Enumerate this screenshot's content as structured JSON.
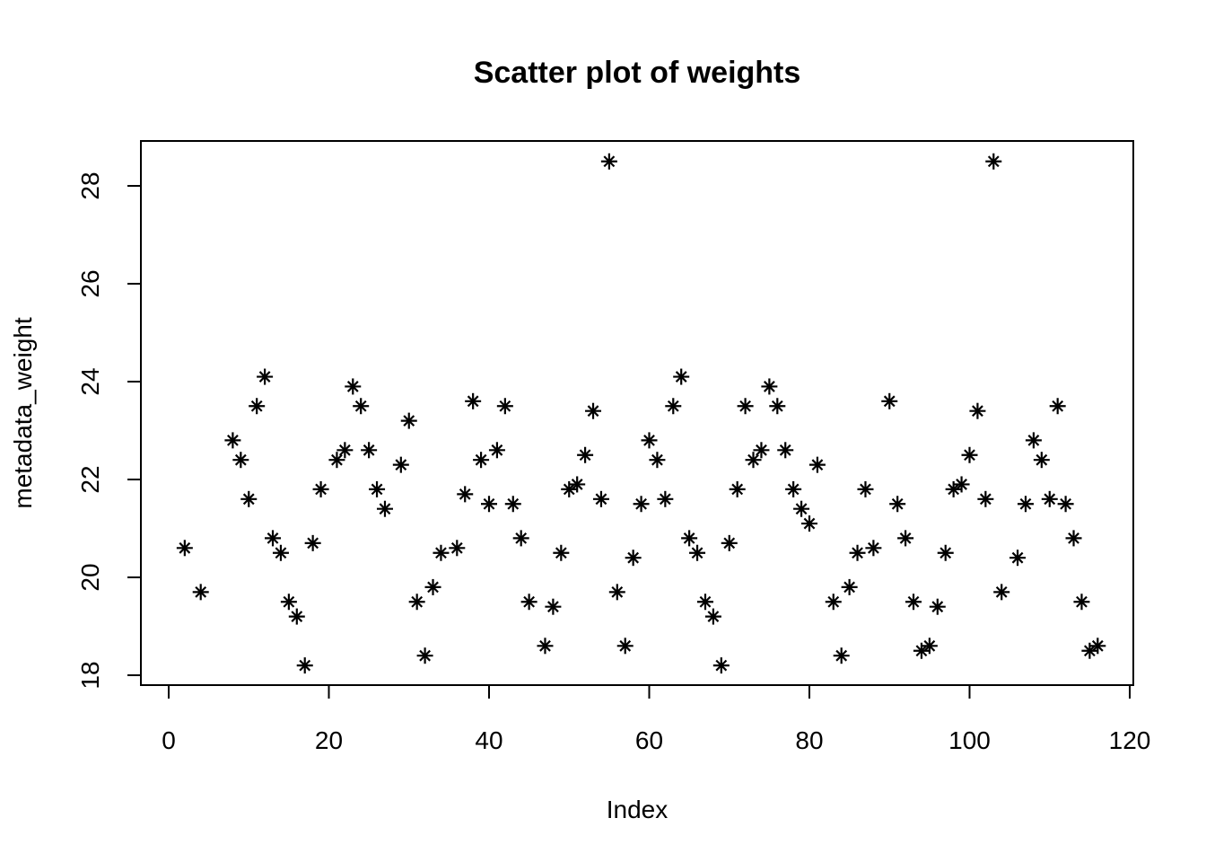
{
  "chart_data": {
    "type": "scatter",
    "title": "Scatter plot of weights",
    "xlabel": "Index",
    "ylabel": "metadata_weight",
    "xlim": [
      0,
      120
    ],
    "ylim": [
      18,
      28
    ],
    "x_ticks": [
      0,
      20,
      40,
      60,
      80,
      100,
      120
    ],
    "y_ticks": [
      18,
      20,
      22,
      24,
      26,
      28
    ],
    "marker": "asterisk",
    "grid": false,
    "legend": false,
    "points": [
      [
        2,
        20.6
      ],
      [
        4,
        19.7
      ],
      [
        8,
        22.8
      ],
      [
        9,
        22.4
      ],
      [
        10,
        21.6
      ],
      [
        11,
        23.5
      ],
      [
        12,
        24.1
      ],
      [
        13,
        20.8
      ],
      [
        14,
        20.5
      ],
      [
        15,
        19.5
      ],
      [
        16,
        19.2
      ],
      [
        17,
        18.2
      ],
      [
        18,
        20.7
      ],
      [
        19,
        21.8
      ],
      [
        21,
        22.4
      ],
      [
        22,
        22.6
      ],
      [
        23,
        23.9
      ],
      [
        24,
        23.5
      ],
      [
        25,
        22.6
      ],
      [
        26,
        21.8
      ],
      [
        27,
        21.4
      ],
      [
        29,
        22.3
      ],
      [
        30,
        23.2
      ],
      [
        31,
        19.5
      ],
      [
        32,
        18.4
      ],
      [
        33,
        19.8
      ],
      [
        34,
        20.5
      ],
      [
        36,
        20.6
      ],
      [
        37,
        21.7
      ],
      [
        38,
        23.6
      ],
      [
        39,
        22.4
      ],
      [
        40,
        21.5
      ],
      [
        41,
        22.6
      ],
      [
        42,
        23.5
      ],
      [
        43,
        21.5
      ],
      [
        44,
        20.8
      ],
      [
        45,
        19.5
      ],
      [
        47,
        18.6
      ],
      [
        48,
        19.4
      ],
      [
        49,
        20.5
      ],
      [
        50,
        21.8
      ],
      [
        51,
        21.9
      ],
      [
        52,
        22.5
      ],
      [
        53,
        23.4
      ],
      [
        54,
        21.6
      ],
      [
        55,
        28.5
      ],
      [
        56,
        19.7
      ],
      [
        57,
        18.6
      ],
      [
        58,
        20.4
      ],
      [
        59,
        21.5
      ],
      [
        60,
        22.8
      ],
      [
        61,
        22.4
      ],
      [
        62,
        21.6
      ],
      [
        63,
        23.5
      ],
      [
        64,
        24.1
      ],
      [
        65,
        20.8
      ],
      [
        66,
        20.5
      ],
      [
        67,
        19.5
      ],
      [
        68,
        19.2
      ],
      [
        69,
        18.2
      ],
      [
        70,
        20.7
      ],
      [
        71,
        21.8
      ],
      [
        72,
        23.5
      ],
      [
        73,
        22.4
      ],
      [
        74,
        22.6
      ],
      [
        75,
        23.9
      ],
      [
        76,
        23.5
      ],
      [
        77,
        22.6
      ],
      [
        78,
        21.8
      ],
      [
        79,
        21.4
      ],
      [
        80,
        21.1
      ],
      [
        81,
        22.3
      ],
      [
        83,
        19.5
      ],
      [
        84,
        18.4
      ],
      [
        85,
        19.8
      ],
      [
        86,
        20.5
      ],
      [
        87,
        21.8
      ],
      [
        88,
        20.6
      ],
      [
        90,
        23.6
      ],
      [
        91,
        21.5
      ],
      [
        92,
        20.8
      ],
      [
        93,
        19.5
      ],
      [
        94,
        18.5
      ],
      [
        95,
        18.6
      ],
      [
        96,
        19.4
      ],
      [
        97,
        20.5
      ],
      [
        98,
        21.8
      ],
      [
        99,
        21.9
      ],
      [
        100,
        22.5
      ],
      [
        101,
        23.4
      ],
      [
        102,
        21.6
      ],
      [
        103,
        28.5
      ],
      [
        104,
        19.7
      ],
      [
        106,
        20.4
      ],
      [
        107,
        21.5
      ],
      [
        108,
        22.8
      ],
      [
        109,
        22.4
      ],
      [
        110,
        21.6
      ],
      [
        111,
        23.5
      ],
      [
        112,
        21.5
      ],
      [
        113,
        20.8
      ],
      [
        114,
        19.5
      ],
      [
        115,
        18.5
      ],
      [
        116,
        18.6
      ]
    ]
  }
}
